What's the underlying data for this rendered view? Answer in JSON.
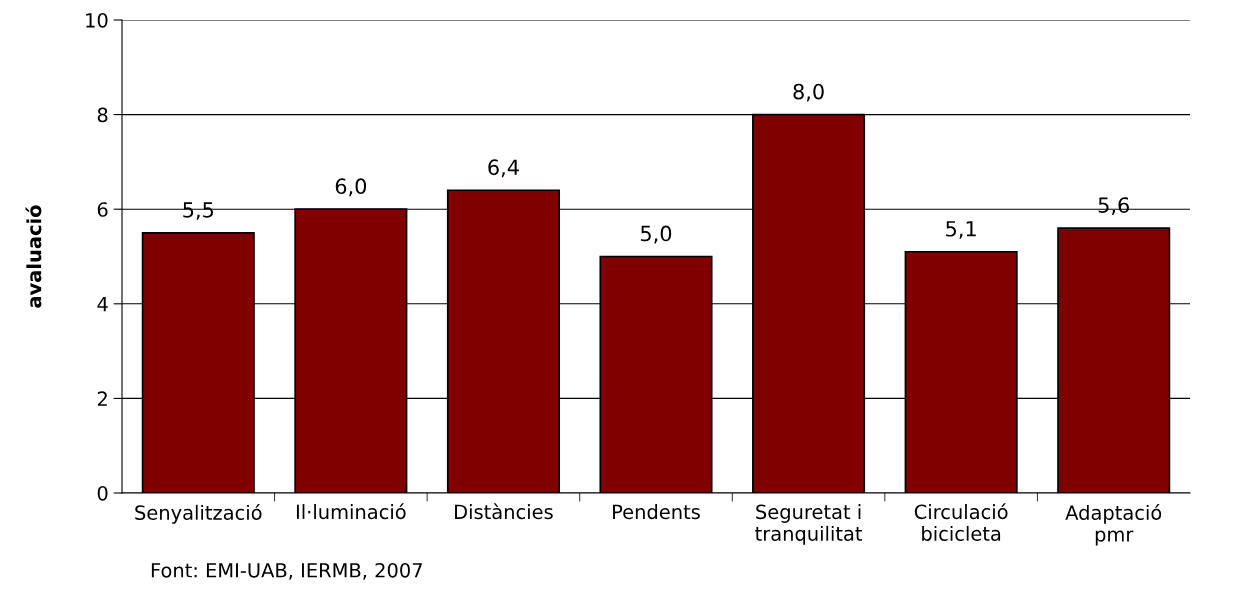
{
  "chart_data": {
    "type": "bar",
    "ylabel": "avaluació",
    "categories": [
      "Senyalització",
      "Il·luminació",
      "Distàncies",
      "Pendents",
      "Seguretat i\ntranquilitat",
      "Circulació\nbicicleta",
      "Adaptació\npmr"
    ],
    "values": [
      5.5,
      6.0,
      6.4,
      5.0,
      8.0,
      5.1,
      5.6
    ],
    "value_labels": [
      "5,5",
      "6,0",
      "6,4",
      "5,0",
      "8,0",
      "5,1",
      "5,6"
    ],
    "color": "#800000",
    "ylim": [
      0,
      10
    ],
    "yticks": [
      0,
      2,
      4,
      6,
      8,
      10
    ],
    "grid": "y",
    "annotations": [
      "Font: EMI-UAB, IERMB, 2007"
    ]
  }
}
